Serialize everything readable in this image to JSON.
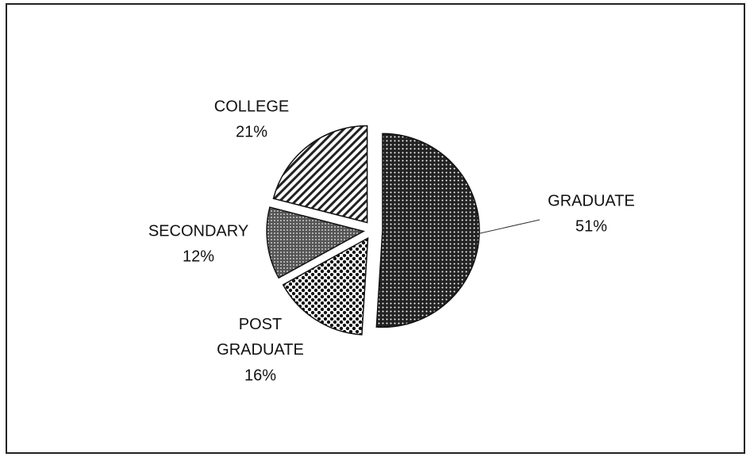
{
  "chart_data": {
    "type": "pie",
    "categories": [
      "GRADUATE",
      "POST GRADUATE",
      "SECONDARY",
      "COLLEGE"
    ],
    "values": [
      51,
      16,
      12,
      21
    ],
    "value_labels": [
      "51%",
      "16%",
      "12%",
      "21%"
    ]
  }
}
